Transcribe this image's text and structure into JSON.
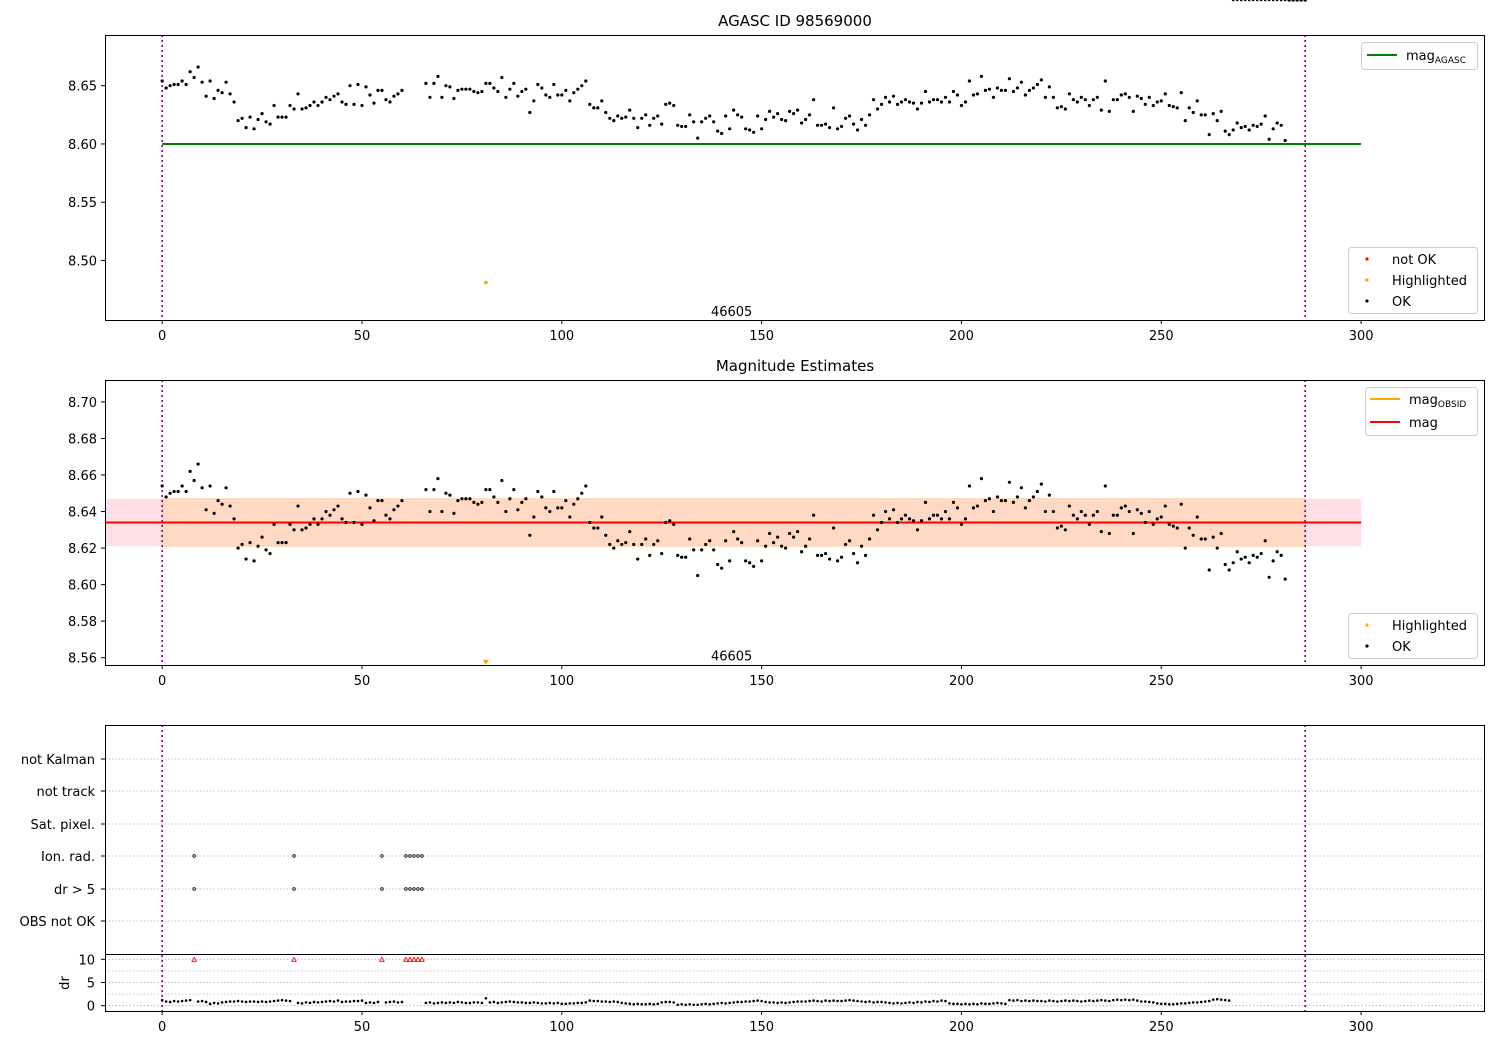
{
  "chart_data": [
    {
      "type": "scatter",
      "title": "AGASC ID 98569000",
      "xlim": [
        -14.3,
        331
      ],
      "ylim": [
        8.4489,
        8.6935
      ],
      "xticks": [
        0,
        50,
        100,
        150,
        200,
        250,
        300
      ],
      "yticks": [
        8.5,
        8.55,
        8.6,
        8.65
      ],
      "reference_line": {
        "name": "mag",
        "name_subscript": "AGASC",
        "y": 8.6,
        "x_range": [
          0,
          300
        ],
        "color": "#008000"
      },
      "vertical_markers": [
        0,
        286
      ],
      "annotation": {
        "text": "46605",
        "x": 142.5,
        "y": 8.4525
      },
      "highlighted_point": {
        "x": 81,
        "y": 8.481,
        "color": "#ffa500"
      },
      "legend_line": {
        "location": "upper right",
        "entries": [
          {
            "label": "mag",
            "subscript": "AGASC",
            "color": "#008000"
          }
        ]
      },
      "legend_points": {
        "location": "lower right",
        "entries": [
          {
            "label": "not OK",
            "color": "#ff0000"
          },
          {
            "label": "Highlighted",
            "color": "#ffa500"
          },
          {
            "label": "OK",
            "color": "#000000"
          }
        ]
      }
    },
    {
      "type": "scatter",
      "title": "Magnitude Estimates",
      "xlim": [
        -14.3,
        331
      ],
      "ylim": [
        8.556,
        8.712
      ],
      "xticks": [
        0,
        50,
        100,
        150,
        200,
        250,
        300
      ],
      "yticks": [
        8.56,
        8.58,
        8.6,
        8.62,
        8.64,
        8.66,
        8.68,
        8.7
      ],
      "mean_line": {
        "name": "mag",
        "y": 8.634,
        "color": "#ff0000",
        "x_range": [
          -14.3,
          300
        ]
      },
      "obsid_line": {
        "name": "mag",
        "name_subscript": "OBSID",
        "y": 8.634,
        "color": "#ffa500",
        "x_range": [
          0,
          286
        ]
      },
      "band_outer": {
        "y": [
          8.621,
          8.647
        ],
        "x_range": [
          -14.3,
          300
        ],
        "color": "#ffe0e6"
      },
      "band_inner": {
        "y": [
          8.621,
          8.647
        ],
        "x_range": [
          0,
          286
        ],
        "color": "#ffd9c4"
      },
      "vertical_markers": [
        0,
        286
      ],
      "annotation": {
        "text": "46605",
        "x": 142.5,
        "y": 8.5585
      },
      "highlighted_point": {
        "x": 81,
        "y": 8.5575,
        "color": "#ffa500",
        "marker": "triangle-down"
      },
      "legend_line": {
        "location": "upper right",
        "entries": [
          {
            "label": "mag",
            "subscript": "OBSID",
            "color": "#ffa500"
          },
          {
            "label": "mag",
            "color": "#ff0000"
          }
        ]
      },
      "legend_points": {
        "location": "lower right",
        "entries": [
          {
            "label": "Highlighted",
            "color": "#ffa500"
          },
          {
            "label": "OK",
            "color": "#000000"
          }
        ]
      }
    },
    {
      "type": "scatter",
      "title": "",
      "xlim": [
        -14.3,
        331
      ],
      "xticks": [
        0,
        50,
        100,
        150,
        200,
        250,
        300
      ],
      "flag_rows": [
        "not Kalman",
        "not track",
        "Sat. pixel.",
        "Ion. rad.",
        "dr > 5",
        "OBS not OK"
      ],
      "flags": {
        "Ion. rad.": [
          8,
          33,
          55,
          61,
          62,
          63,
          64,
          65
        ],
        "dr > 5": [
          8,
          33,
          55,
          61,
          62,
          63,
          64,
          65
        ]
      },
      "dr_ylabel": "dr",
      "dr_yticks": [
        0,
        5,
        10
      ],
      "dr_ylim": [
        -0.5,
        10.5
      ],
      "dr_capped_points": [
        8,
        33,
        55,
        61,
        62,
        63,
        64,
        65
      ],
      "vertical_markers": [
        0,
        286
      ]
    }
  ],
  "series": {
    "x": [
      0,
      1,
      2,
      3,
      4,
      5,
      6,
      7,
      8,
      9,
      10,
      11,
      12,
      13,
      14,
      15,
      16,
      17,
      18,
      19,
      20,
      21,
      22,
      23,
      24,
      25,
      26,
      27,
      28,
      29,
      30,
      31,
      32,
      33,
      34,
      35,
      36,
      37,
      38,
      39,
      40,
      41,
      42,
      43,
      44,
      45,
      46,
      47,
      48,
      49,
      50,
      51,
      52,
      53,
      54,
      55,
      56,
      57,
      58,
      59,
      60,
      66,
      67,
      68,
      69,
      70,
      71,
      72,
      73,
      74,
      75,
      76,
      77,
      78,
      79,
      80,
      81,
      82,
      83,
      84,
      85,
      86,
      87,
      88,
      89,
      90,
      91,
      92,
      93,
      94,
      95,
      96,
      97,
      98,
      99,
      100,
      101,
      102,
      103,
      104,
      105,
      106,
      107,
      108,
      109,
      110,
      111,
      112,
      113,
      114,
      115,
      116,
      117,
      118,
      119,
      120,
      121,
      122,
      123,
      124,
      125,
      126,
      127,
      128,
      129,
      130,
      131,
      132,
      133,
      134,
      135,
      136,
      137,
      138,
      139,
      140,
      141,
      142,
      143,
      144,
      145,
      146,
      147,
      148,
      149,
      150,
      151,
      152,
      153,
      154,
      155,
      156,
      157,
      158,
      159,
      160,
      161,
      162,
      163,
      164,
      165,
      166,
      167,
      168,
      169,
      170,
      171,
      172,
      173,
      174,
      175,
      176,
      177,
      178,
      179,
      180,
      181,
      182,
      183,
      184,
      185,
      186,
      187,
      188,
      189,
      190,
      191,
      192,
      193,
      194,
      195,
      196,
      197,
      198,
      199,
      200,
      201,
      202,
      203,
      204,
      205,
      206,
      207,
      208,
      209,
      210,
      211,
      212,
      213,
      214,
      215,
      216,
      217,
      218,
      219,
      220,
      221,
      222,
      223,
      224,
      225,
      226,
      227,
      228,
      229,
      230,
      231,
      232,
      233,
      234,
      235,
      236,
      237,
      238,
      239,
      240,
      241,
      242,
      243,
      244,
      245,
      246,
      247,
      248,
      249,
      250,
      251,
      252,
      253,
      254,
      255,
      256,
      257,
      258,
      259,
      260,
      261,
      262,
      263,
      264,
      265,
      266,
      267,
      268,
      269,
      270,
      271,
      272,
      273,
      274,
      275,
      276,
      277,
      278,
      279,
      280,
      281,
      282,
      283,
      284,
      285,
      286
    ],
    "mag": [
      8.654,
      8.648,
      8.65,
      8.651,
      8.651,
      8.654,
      8.651,
      8.662,
      8.657,
      8.666,
      8.653,
      8.641,
      8.654,
      8.639,
      8.646,
      8.644,
      8.653,
      8.643,
      8.636,
      8.62,
      8.622,
      8.614,
      8.623,
      8.613,
      8.621,
      8.626,
      8.619,
      8.617,
      8.633,
      8.623,
      8.623,
      8.623,
      8.633,
      8.63,
      8.643,
      8.63,
      8.631,
      8.633,
      8.636,
      8.633,
      8.636,
      8.64,
      8.638,
      8.641,
      8.643,
      8.636,
      8.634,
      8.65,
      8.634,
      8.651,
      8.633,
      8.649,
      8.642,
      8.635,
      8.646,
      8.646,
      8.638,
      8.636,
      8.641,
      8.643,
      8.646,
      8.652,
      8.64,
      8.652,
      8.658,
      8.64,
      8.65,
      8.649,
      8.639,
      8.646,
      8.647,
      8.647,
      8.647,
      8.645,
      8.644,
      8.645,
      8.652,
      8.652,
      8.648,
      8.645,
      8.657,
      8.64,
      8.647,
      8.652,
      8.641,
      8.645,
      8.647,
      8.627,
      8.637,
      8.651,
      8.648,
      8.642,
      8.64,
      8.651,
      8.642,
      8.642,
      8.646,
      8.637,
      8.644,
      8.647,
      8.65,
      8.654,
      8.634,
      8.631,
      8.631,
      8.637,
      8.627,
      8.622,
      8.62,
      8.624,
      8.622,
      8.623,
      8.629,
      8.622,
      8.614,
      8.622,
      8.625,
      8.616,
      8.622,
      8.624,
      8.617,
      8.634,
      8.635,
      8.633,
      8.616,
      8.615,
      8.615,
      8.625,
      8.619,
      8.605,
      8.619,
      8.622,
      8.624,
      8.619,
      8.611,
      8.609,
      8.624,
      8.613,
      8.629,
      8.625,
      8.623,
      8.613,
      8.612,
      8.61,
      8.624,
      8.613,
      8.621,
      8.628,
      8.623,
      8.626,
      8.621,
      8.62,
      8.628,
      8.626,
      8.629,
      8.618,
      8.621,
      8.625,
      8.638,
      8.616,
      8.616,
      8.617,
      8.614,
      8.631,
      8.613,
      8.615,
      8.622,
      8.624,
      8.617,
      8.612,
      8.621,
      8.616,
      8.625,
      8.638,
      8.63,
      8.634,
      8.64,
      8.636,
      8.641,
      8.634,
      8.636,
      8.638,
      8.636,
      8.635,
      8.63,
      8.635,
      8.645,
      8.636,
      8.638,
      8.638,
      8.636,
      8.64,
      8.636,
      8.645,
      8.642,
      8.633,
      8.636,
      8.654,
      8.642,
      8.643,
      8.658,
      8.646,
      8.647,
      8.64,
      8.648,
      8.646,
      8.646,
      8.656,
      8.645,
      8.648,
      8.653,
      8.642,
      8.646,
      8.648,
      8.651,
      8.655,
      8.64,
      8.649,
      8.64,
      8.631,
      8.632,
      8.63,
      8.643,
      8.638,
      8.636,
      8.64,
      8.638,
      8.633,
      8.638,
      8.64,
      8.629,
      8.654,
      8.628,
      8.638,
      8.638,
      8.642,
      8.643,
      8.64,
      8.628,
      8.641,
      8.639,
      8.634,
      8.64,
      8.633,
      8.636,
      8.637,
      8.643,
      8.633,
      8.632,
      8.631,
      8.644,
      8.62,
      8.631,
      8.627,
      8.637,
      8.625,
      8.625,
      8.608,
      8.626,
      8.62,
      8.628,
      8.611,
      8.608,
      8.612,
      8.618,
      8.614,
      8.615,
      8.612,
      8.616,
      8.615,
      8.617,
      8.624,
      8.604,
      8.613,
      8.618,
      8.616,
      8.603
    ],
    "dr": [
      1.2,
      0.9,
      0.8,
      1.0,
      0.9,
      1.0,
      1.1,
      1.2,
      10.0,
      0.9,
      1.0,
      0.8,
      0.4,
      0.6,
      0.5,
      0.7,
      0.8,
      0.9,
      0.9,
      1.0,
      0.9,
      0.8,
      0.9,
      0.9,
      0.8,
      0.9,
      0.8,
      0.9,
      1.0,
      1.1,
      1.2,
      1.1,
      1.0,
      10.0,
      0.6,
      0.5,
      0.7,
      0.6,
      0.8,
      0.7,
      0.8,
      0.9,
      1.0,
      0.9,
      1.1,
      0.8,
      0.9,
      0.9,
      1.0,
      1.0,
      1.1,
      0.6,
      0.7,
      0.6,
      0.8,
      10.0,
      0.7,
      0.8,
      0.9,
      0.7,
      0.8,
      0.6,
      0.7,
      0.5,
      0.6,
      0.7,
      0.6,
      0.7,
      0.6,
      0.8,
      0.7,
      0.6,
      0.6,
      0.7,
      0.7,
      0.6,
      1.6,
      0.7,
      0.8,
      0.6,
      0.7,
      0.8,
      0.9,
      0.8,
      0.7,
      0.7,
      0.6,
      0.6,
      0.7,
      0.6,
      0.5,
      0.5,
      0.6,
      0.5,
      0.6,
      0.4,
      0.4,
      0.5,
      0.5,
      0.6,
      0.6,
      0.7,
      1.1,
      1.0,
      1.0,
      0.9,
      0.9,
      0.8,
      0.9,
      0.8,
      0.6,
      0.5,
      0.4,
      0.3,
      0.4,
      0.3,
      0.3,
      0.4,
      0.3,
      0.4,
      0.7,
      0.8,
      0.8,
      0.7,
      0.2,
      0.3,
      0.2,
      0.3,
      0.2,
      0.2,
      0.3,
      0.4,
      0.3,
      0.4,
      0.5,
      0.6,
      0.5,
      0.6,
      0.7,
      0.8,
      0.8,
      0.9,
      0.9,
      1.0,
      1.1,
      1.0,
      0.8,
      0.7,
      0.7,
      0.6,
      0.7,
      0.6,
      0.7,
      0.8,
      0.9,
      0.9,
      0.9,
      1.0,
      1.1,
      1.0,
      0.9,
      1.1,
      1.0,
      1.1,
      1.0,
      1.0,
      1.1,
      1.2,
      1.1,
      1.0,
      0.9,
      0.8,
      0.9,
      0.7,
      0.8,
      0.8,
      0.7,
      0.6,
      0.5,
      0.6,
      0.5,
      0.6,
      0.7,
      0.6,
      0.8,
      0.7,
      0.9,
      0.8,
      1.0,
      0.9,
      1.1,
      1.0,
      0.5,
      0.4,
      0.4,
      0.3,
      0.4,
      0.3,
      0.4,
      0.3,
      0.5,
      0.4,
      0.4,
      0.5,
      0.6,
      0.5,
      0.4,
      1.2,
      1.1,
      1.2,
      1.0,
      1.1,
      1.0,
      1.1,
      1.0,
      1.0,
      0.9,
      1.1,
      1.0,
      0.9,
      1.0,
      1.1,
      1.0,
      1.1,
      1.0,
      0.9,
      1.0,
      1.1,
      1.0,
      1.1,
      1.2,
      1.1,
      1.0,
      1.2,
      1.3,
      1.2,
      1.3,
      1.2,
      1.3,
      1.1,
      0.9,
      0.9,
      0.8,
      0.7,
      0.5,
      0.4,
      0.4,
      0.3,
      0.3,
      0.4,
      0.5,
      0.5,
      0.6,
      0.7,
      0.7,
      0.8,
      0.9,
      1.0,
      1.3,
      1.4,
      1.3,
      1.2,
      1.1
    ]
  }
}
